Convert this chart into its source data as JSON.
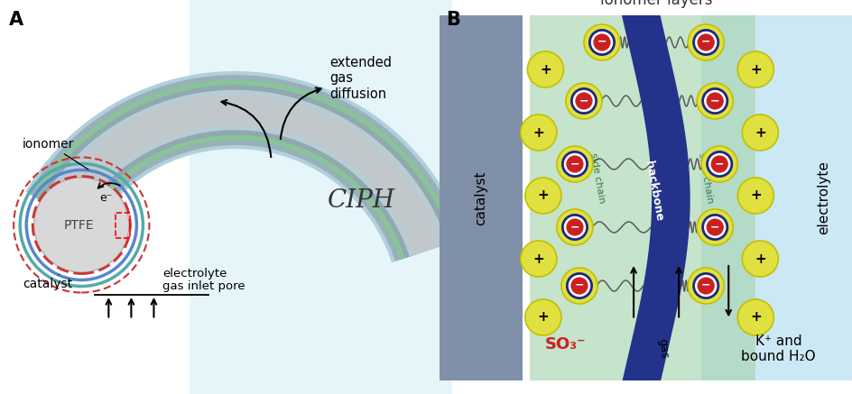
{
  "panel_A_label": "A",
  "panel_B_label": "B",
  "ciph_text": "CIPH",
  "ionomer_layers_text": "ionomer layers",
  "extended_gas_diffusion": "extended\ngas\ndiffusion",
  "electrolyte_gas_inlet_pore": "electrolyte\ngas inlet pore",
  "ionomer_label": "ionomer",
  "e_minus_label": "e⁻",
  "catalyst_label_A": "catalyst",
  "ptfe_text": "PTFE",
  "so3_text": "SO₃⁻",
  "kplus_text": "K⁺ and\nbound H₂O",
  "gas_text": "gas",
  "backbone_text": "backbone",
  "side_chain_text": "side chain",
  "catalyst_label_B": "catalyst",
  "electrolyte_label_B": "electrolyte",
  "bg_color": "#ffffff",
  "light_blue_A": "#c8eaf5",
  "green_tube": "#8ec8a0",
  "gray_tube_outer": "#a8b8bc",
  "gray_tube_inner": "#c8d8dc",
  "ptfe_gray": "#d0d0d0",
  "catalyst_bar_color": "#8090a8",
  "electrolyte_bg_color": "#cce8f5",
  "green_ionomer_color": "#a8d4b0",
  "backbone_color": "#1a2888",
  "ion_yellow": "#e0e040",
  "ion_yellow_edge": "#c0c000",
  "ion_red": "#cc2020",
  "ion_navy_ring": "#1a2888",
  "ring_red": "#cc3333",
  "ring_cyan": "#66cccc",
  "ring_blue": "#5588cc"
}
